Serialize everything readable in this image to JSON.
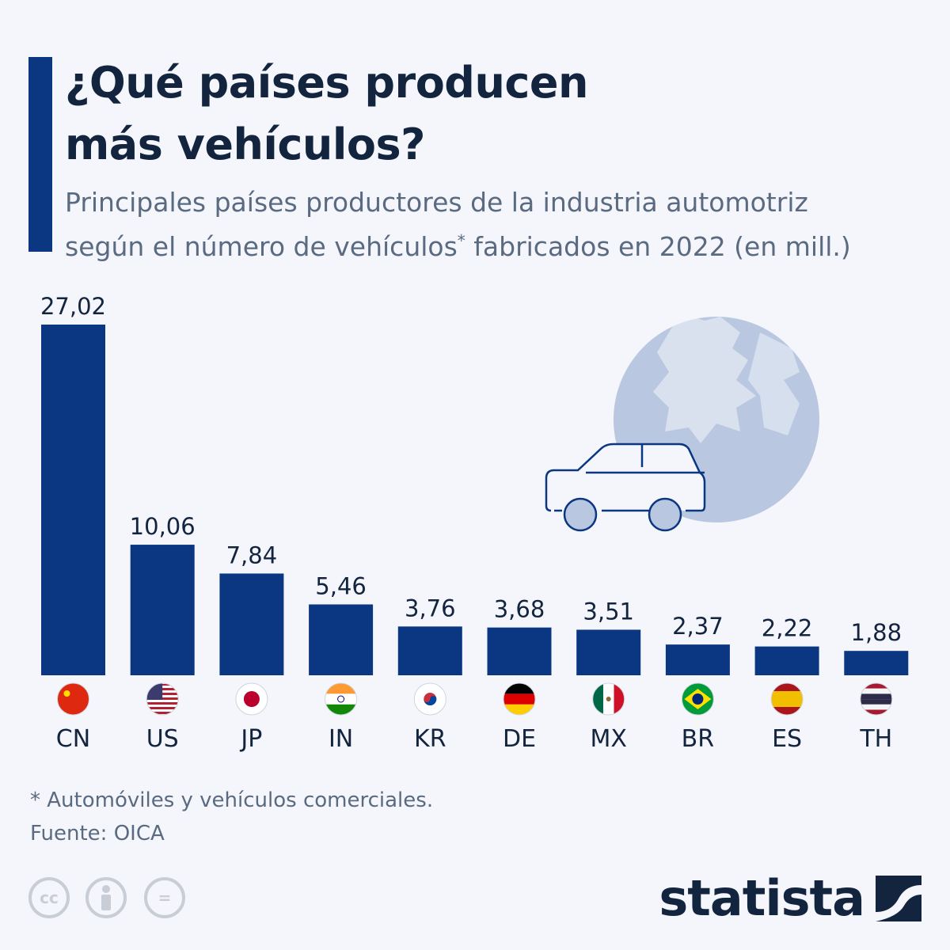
{
  "header": {
    "title_line1": "¿Qué países producen",
    "title_line2": "más vehículos?",
    "subtitle_line1": "Principales países productores de la industria automotriz",
    "subtitle_line2a": "según el número de vehículos",
    "subtitle_sup": "*",
    "subtitle_line2b": " fabricados en 2022 (en mill.)"
  },
  "chart_data": {
    "type": "bar",
    "categories": [
      "CN",
      "US",
      "JP",
      "IN",
      "KR",
      "DE",
      "MX",
      "BR",
      "ES",
      "TH"
    ],
    "values": [
      27.02,
      10.06,
      7.84,
      5.46,
      3.76,
      3.68,
      3.51,
      2.37,
      2.22,
      1.88
    ],
    "value_labels": [
      "27,02",
      "10,06",
      "7,84",
      "5,46",
      "3,76",
      "3,68",
      "3,51",
      "2,37",
      "2,22",
      "1,88"
    ],
    "bar_color": "#0b3682",
    "grid": false,
    "ylim": [
      0,
      27.02
    ]
  },
  "footer": {
    "footnote": "* Automóviles y vehículos comerciales.",
    "source": "Fuente: OICA",
    "license_icons": [
      "cc-icon",
      "attribution-icon",
      "no-derivatives-icon"
    ],
    "cc_label": "cc",
    "nd_label": "=",
    "brand": "statista"
  },
  "colors": {
    "accent": "#0b3682",
    "title": "#13243f",
    "globe": "#b9c8e0"
  }
}
